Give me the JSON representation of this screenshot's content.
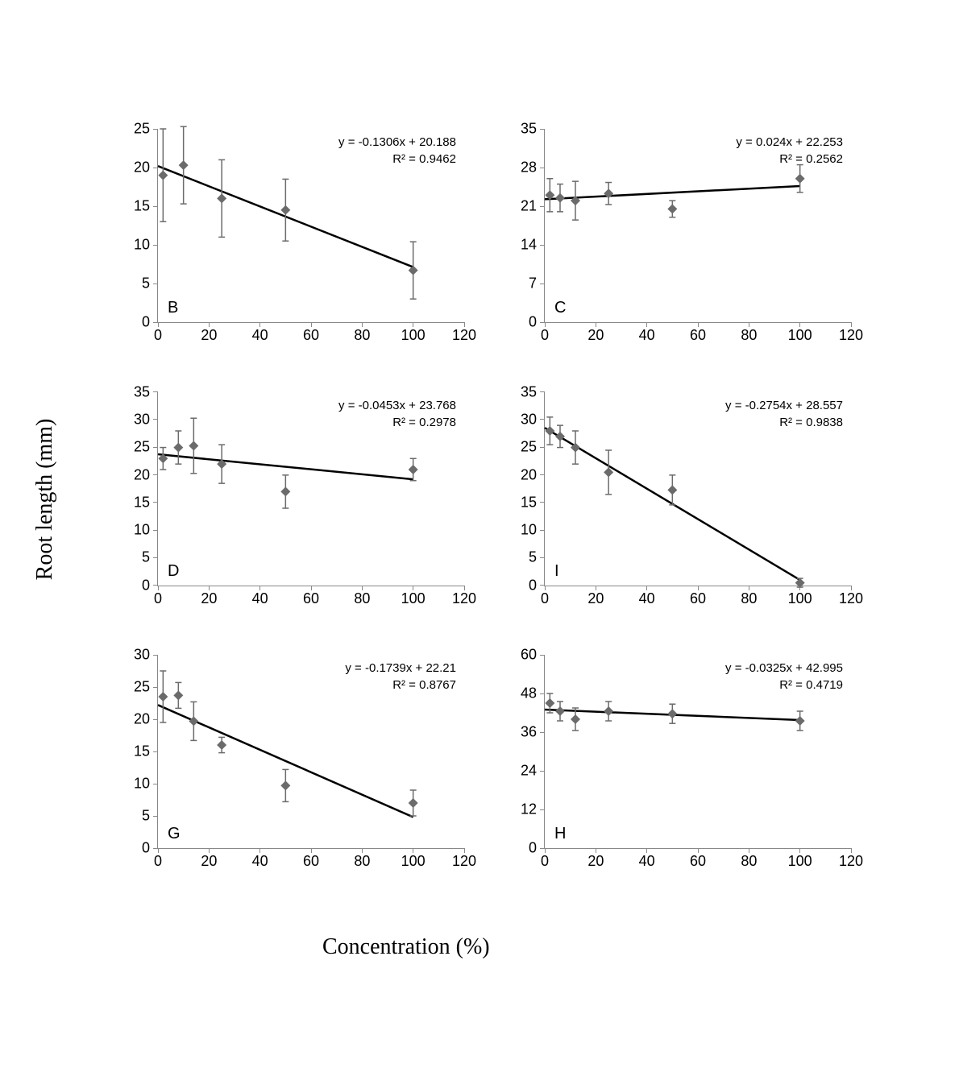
{
  "axis_titles": {
    "y": "Root length (mm)",
    "x": "Concentration (%)"
  },
  "common": {
    "xlim": [
      0,
      120
    ],
    "xtick_step": 20,
    "marker_color": "#6b6b6b",
    "line_color": "#000000",
    "axis_color": "#888888",
    "background_color": "#ffffff"
  },
  "charts": [
    {
      "id": "B",
      "panel_label": "B",
      "ylim": [
        0,
        25
      ],
      "ytick_step": 5,
      "equation": "y = -0.1306x + 20.188",
      "r2": "R² = 0.9462",
      "slope": -0.1306,
      "intercept": 20.188,
      "points": [
        {
          "x": 2,
          "y": 19,
          "err": 6
        },
        {
          "x": 10,
          "y": 20.3,
          "err": 5
        },
        {
          "x": 25,
          "y": 16,
          "err": 5
        },
        {
          "x": 50,
          "y": 14.5,
          "err": 4
        },
        {
          "x": 100,
          "y": 6.7,
          "err": 3.7
        }
      ]
    },
    {
      "id": "C",
      "panel_label": "C",
      "ylim": [
        0,
        35
      ],
      "ytick_step": 7,
      "equation": "y = 0.024x + 22.253",
      "r2": "R² = 0.2562",
      "slope": 0.024,
      "intercept": 22.253,
      "points": [
        {
          "x": 2,
          "y": 23,
          "err": 3
        },
        {
          "x": 6,
          "y": 22.5,
          "err": 2.5
        },
        {
          "x": 12,
          "y": 22,
          "err": 3.5
        },
        {
          "x": 25,
          "y": 23.3,
          "err": 2
        },
        {
          "x": 50,
          "y": 20.5,
          "err": 1.5
        },
        {
          "x": 100,
          "y": 26,
          "err": 2.5
        }
      ]
    },
    {
      "id": "D",
      "panel_label": "D",
      "ylim": [
        0,
        35
      ],
      "ytick_step": 5,
      "equation": "y = -0.0453x + 23.768",
      "r2": "R² = 0.2978",
      "slope": -0.0453,
      "intercept": 23.768,
      "points": [
        {
          "x": 2,
          "y": 23,
          "err": 2
        },
        {
          "x": 8,
          "y": 25,
          "err": 3
        },
        {
          "x": 14,
          "y": 25.3,
          "err": 5
        },
        {
          "x": 25,
          "y": 22,
          "err": 3.5
        },
        {
          "x": 50,
          "y": 17,
          "err": 3
        },
        {
          "x": 100,
          "y": 21,
          "err": 2
        }
      ]
    },
    {
      "id": "I",
      "panel_label": "I",
      "ylim": [
        0,
        35
      ],
      "ytick_step": 5,
      "equation": "y = -0.2754x + 28.557",
      "r2": "R² = 0.9838",
      "slope": -0.2754,
      "intercept": 28.557,
      "points": [
        {
          "x": 2,
          "y": 28,
          "err": 2.5
        },
        {
          "x": 6,
          "y": 27,
          "err": 2
        },
        {
          "x": 12,
          "y": 25,
          "err": 3
        },
        {
          "x": 25,
          "y": 20.5,
          "err": 4
        },
        {
          "x": 50,
          "y": 17.3,
          "err": 2.7
        },
        {
          "x": 100,
          "y": 0.5,
          "err": 0.8
        }
      ]
    },
    {
      "id": "G",
      "panel_label": "G",
      "ylim": [
        0,
        30
      ],
      "ytick_step": 5,
      "equation": "y = -0.1739x + 22.21",
      "r2": "R² = 0.8767",
      "slope": -0.1739,
      "intercept": 22.21,
      "points": [
        {
          "x": 2,
          "y": 23.5,
          "err": 4
        },
        {
          "x": 8,
          "y": 23.7,
          "err": 2
        },
        {
          "x": 14,
          "y": 19.7,
          "err": 3
        },
        {
          "x": 25,
          "y": 16,
          "err": 1.2
        },
        {
          "x": 50,
          "y": 9.7,
          "err": 2.5
        },
        {
          "x": 100,
          "y": 7,
          "err": 2
        }
      ]
    },
    {
      "id": "H",
      "panel_label": "H",
      "ylim": [
        0,
        60
      ],
      "ytick_step": 12,
      "equation": "y = -0.0325x + 42.995",
      "r2": "R² = 0.4719",
      "slope": -0.0325,
      "intercept": 42.995,
      "points": [
        {
          "x": 2,
          "y": 45,
          "err": 3
        },
        {
          "x": 6,
          "y": 42.5,
          "err": 3
        },
        {
          "x": 12,
          "y": 40,
          "err": 3.5
        },
        {
          "x": 25,
          "y": 42.5,
          "err": 3
        },
        {
          "x": 50,
          "y": 41.7,
          "err": 3
        },
        {
          "x": 100,
          "y": 39.5,
          "err": 3
        }
      ]
    }
  ]
}
